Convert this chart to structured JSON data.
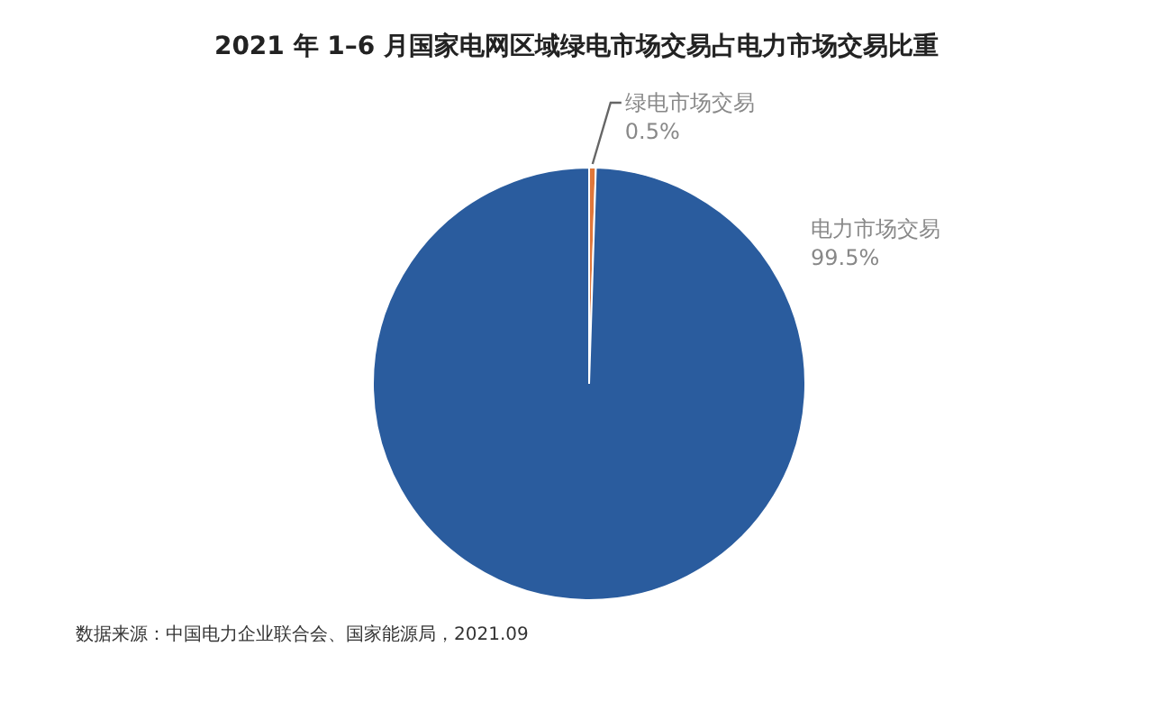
{
  "chart_data": {
    "type": "pie",
    "title": "2021 年 1–6 月国家电网区域绿电市场交易占电力市场交易比重",
    "categories": [
      "绿电市场交易",
      "电力市场交易"
    ],
    "values": [
      0.5,
      99.5
    ],
    "value_labels": [
      "0.5%",
      "99.5%"
    ],
    "colors": [
      "#e0773a",
      "#2a5c9e"
    ],
    "legend": false,
    "annotations": [
      "数据来源：中国电力企业联合会、国家能源局，2021.09"
    ]
  }
}
